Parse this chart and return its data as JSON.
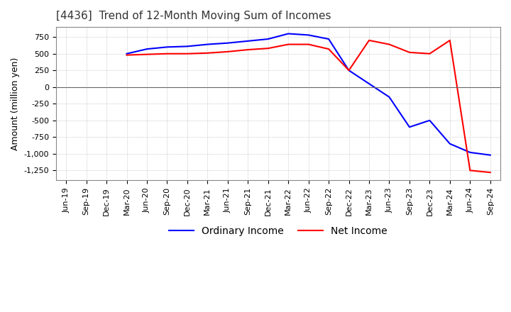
{
  "title": "[4436]  Trend of 12-Month Moving Sum of Incomes",
  "ylabel": "Amount (million yen)",
  "ylim": [
    -1400,
    900
  ],
  "yticks": [
    750,
    500,
    250,
    0,
    -250,
    -500,
    -750,
    -1000,
    -1250
  ],
  "legend_labels": [
    "Ordinary Income",
    "Net Income"
  ],
  "line_colors": [
    "#0000ff",
    "#ff0000"
  ],
  "x_labels": [
    "Jun-19",
    "Sep-19",
    "Dec-19",
    "Mar-20",
    "Jun-20",
    "Sep-20",
    "Dec-20",
    "Mar-21",
    "Jun-21",
    "Sep-21",
    "Dec-21",
    "Mar-22",
    "Jun-22",
    "Sep-22",
    "Dec-22",
    "Mar-23",
    "Jun-23",
    "Sep-23",
    "Dec-23",
    "Mar-24",
    "Jun-24",
    "Sep-24"
  ],
  "ordinary_income": [
    null,
    null,
    null,
    500,
    570,
    600,
    610,
    640,
    660,
    690,
    720,
    800,
    780,
    720,
    250,
    50,
    -150,
    -600,
    -500,
    -850,
    -980,
    -1020
  ],
  "net_income": [
    null,
    null,
    null,
    480,
    490,
    500,
    500,
    510,
    530,
    560,
    580,
    640,
    640,
    570,
    250,
    700,
    640,
    520,
    500,
    700,
    -1250,
    -1280
  ],
  "background_color": "#ffffff",
  "grid_color": "#aaaaaa",
  "title_fontsize": 11,
  "label_fontsize": 9,
  "tick_fontsize": 8
}
